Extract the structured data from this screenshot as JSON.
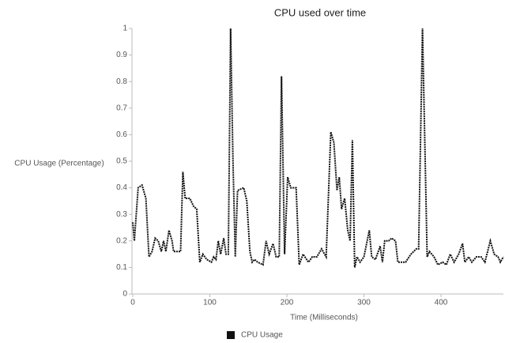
{
  "chart_data": {
    "type": "line",
    "title": "CPU used over time",
    "xlabel": "Time (Milliseconds)",
    "ylabel": "CPU Usage (Percentage)",
    "x": [
      0,
      2,
      7,
      12,
      17,
      21,
      25,
      29,
      33,
      37,
      40,
      43,
      47,
      51,
      53,
      62,
      65,
      68,
      74,
      79,
      83,
      87,
      91,
      96,
      102,
      105,
      108,
      111,
      114,
      118,
      121,
      124,
      127,
      130,
      133,
      136,
      144,
      148,
      152,
      155,
      158,
      162,
      169,
      173,
      177,
      182,
      186,
      190,
      193,
      197,
      201,
      205,
      212,
      216,
      221,
      228,
      233,
      239,
      245,
      251,
      257,
      261,
      265,
      268,
      271,
      275,
      279,
      282,
      285,
      288,
      291,
      295,
      300,
      307,
      310,
      315,
      321,
      324,
      327,
      332,
      336,
      341,
      344,
      354,
      361,
      368,
      371,
      376,
      382,
      385,
      391,
      396,
      402,
      407,
      412,
      417,
      423,
      428,
      431,
      436,
      440,
      446,
      452,
      457,
      464,
      469,
      474,
      477,
      481
    ],
    "series": [
      {
        "name": "CPU Usage",
        "color": "#111111",
        "values": [
          0.27,
          0.2,
          0.4,
          0.41,
          0.36,
          0.14,
          0.16,
          0.21,
          0.2,
          0.16,
          0.2,
          0.16,
          0.24,
          0.2,
          0.16,
          0.16,
          0.46,
          0.36,
          0.36,
          0.33,
          0.32,
          0.12,
          0.15,
          0.13,
          0.12,
          0.14,
          0.13,
          0.2,
          0.15,
          0.21,
          0.15,
          0.15,
          1.0,
          0.5,
          0.14,
          0.39,
          0.4,
          0.35,
          0.16,
          0.12,
          0.13,
          0.12,
          0.11,
          0.2,
          0.15,
          0.19,
          0.14,
          0.14,
          0.82,
          0.15,
          0.44,
          0.4,
          0.4,
          0.11,
          0.15,
          0.12,
          0.14,
          0.14,
          0.17,
          0.14,
          0.61,
          0.57,
          0.39,
          0.44,
          0.32,
          0.36,
          0.24,
          0.2,
          0.58,
          0.1,
          0.14,
          0.12,
          0.14,
          0.24,
          0.14,
          0.13,
          0.18,
          0.12,
          0.2,
          0.2,
          0.21,
          0.2,
          0.12,
          0.12,
          0.15,
          0.17,
          0.17,
          1.0,
          0.14,
          0.16,
          0.14,
          0.11,
          0.12,
          0.11,
          0.15,
          0.12,
          0.15,
          0.19,
          0.12,
          0.14,
          0.12,
          0.14,
          0.14,
          0.12,
          0.2,
          0.15,
          0.14,
          0.12,
          0.14
        ]
      }
    ],
    "xlim": [
      0,
      481
    ],
    "xticks": [
      0,
      100,
      200,
      300,
      400
    ],
    "ylim": [
      0,
      1
    ],
    "yticks": [
      0,
      0.1,
      0.2,
      0.3,
      0.4,
      0.5,
      0.6,
      0.7,
      0.8,
      0.9,
      1
    ],
    "grid": false,
    "legend": "bottom"
  }
}
